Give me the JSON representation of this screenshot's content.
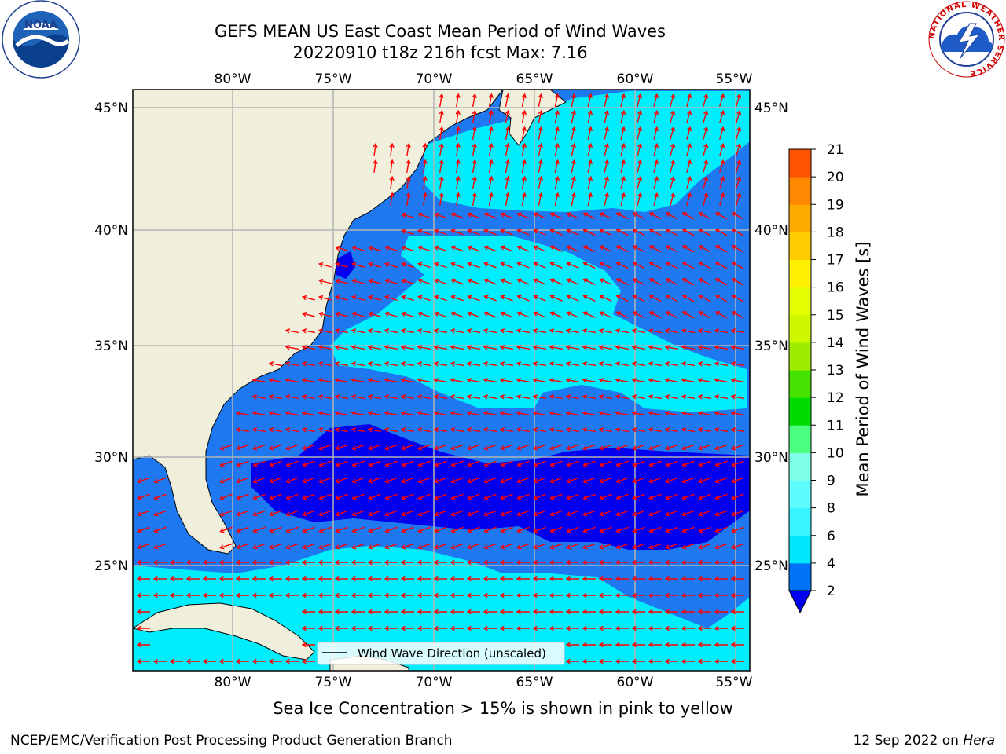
{
  "title_line1": "GEFS MEAN US East Coast Mean Period of Wind Waves",
  "title_line2": "20220910 t18z 216h fcst   Max: 7.16",
  "map": {
    "lon_ticks_top": [
      "80°W",
      "75°W",
      "70°W",
      "65°W",
      "60°W",
      "55°W"
    ],
    "lon_ticks_bottom": [
      "80°W",
      "75°W",
      "70°W",
      "65°W",
      "60°W",
      "55°W"
    ],
    "lat_ticks_left": [
      "45°N",
      "40°N",
      "35°N",
      "30°N",
      "25°N"
    ],
    "lat_ticks_right": [
      "45°N",
      "40°N",
      "35°N",
      "30°N",
      "25°N"
    ],
    "legend_label": "Wind Wave Direction (unscaled)",
    "extent": {
      "lon": [
        -85,
        -54.3
      ],
      "lat": [
        20.5,
        46
      ]
    }
  },
  "colorbar": {
    "label": "Mean Period of Wind Waves [s]",
    "ticks": [
      "2",
      "4",
      "6",
      "8",
      "9",
      "10",
      "11",
      "12",
      "13",
      "14",
      "15",
      "16",
      "17",
      "18",
      "19",
      "20",
      "21"
    ],
    "colors": [
      "#0073f6",
      "#00e6ff",
      "#39f3ff",
      "#5efcff",
      "#7dffe8",
      "#4bff80",
      "#00dc00",
      "#46e100",
      "#a0ec00",
      "#cdf800",
      "#e3ff00",
      "#fff000",
      "#ffcc00",
      "#ffaa00",
      "#ff8800",
      "#ff5500",
      "#ff2200",
      "#ff0000"
    ],
    "extend_min_color": "#0000ee"
  },
  "subcaption": "Sea Ice Concentration > 15% is shown in pink to yellow",
  "credit_left": "NCEP/EMC/Verification Post Processing Product Generation Branch",
  "credit_right_prefix": "12 Sep 2022 on ",
  "credit_right_host": "Hera",
  "logos": {
    "noaa_text": "NOAA",
    "nws_ring_text": "NATIONAL WEATHER SERVICE"
  },
  "colors": {
    "land": "#efefdc",
    "band_low": "#0000ee",
    "band_2_4": "#1e78f0",
    "band_4_6": "#00eefc",
    "arrow": "#ff0000",
    "grid": "#b4b4b4"
  }
}
